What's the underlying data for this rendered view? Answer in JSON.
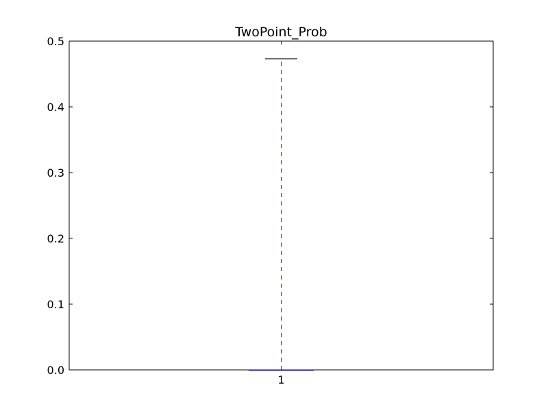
{
  "chart_data": {
    "type": "box",
    "title": "TwoPoint_Prob",
    "xlabel": "",
    "ylabel": "",
    "categories": [
      "1"
    ],
    "boxes": [
      {
        "category": "1",
        "whisker_low": 0.0,
        "q1": 0.0,
        "median": 0.0,
        "q3": 0.0,
        "whisker_high": 0.473
      }
    ],
    "ylim": [
      0,
      0.5
    ],
    "yticks": [
      "0.0",
      "0.1",
      "0.2",
      "0.3",
      "0.4",
      "0.5"
    ],
    "ytick_values": [
      0.0,
      0.1,
      0.2,
      0.3,
      0.4,
      0.5
    ],
    "grid": false,
    "colors": {
      "whisker": "#0000ff",
      "cap": "#000000",
      "box": "#0000ff",
      "median": "#ff0000",
      "axes": "#000000"
    }
  }
}
